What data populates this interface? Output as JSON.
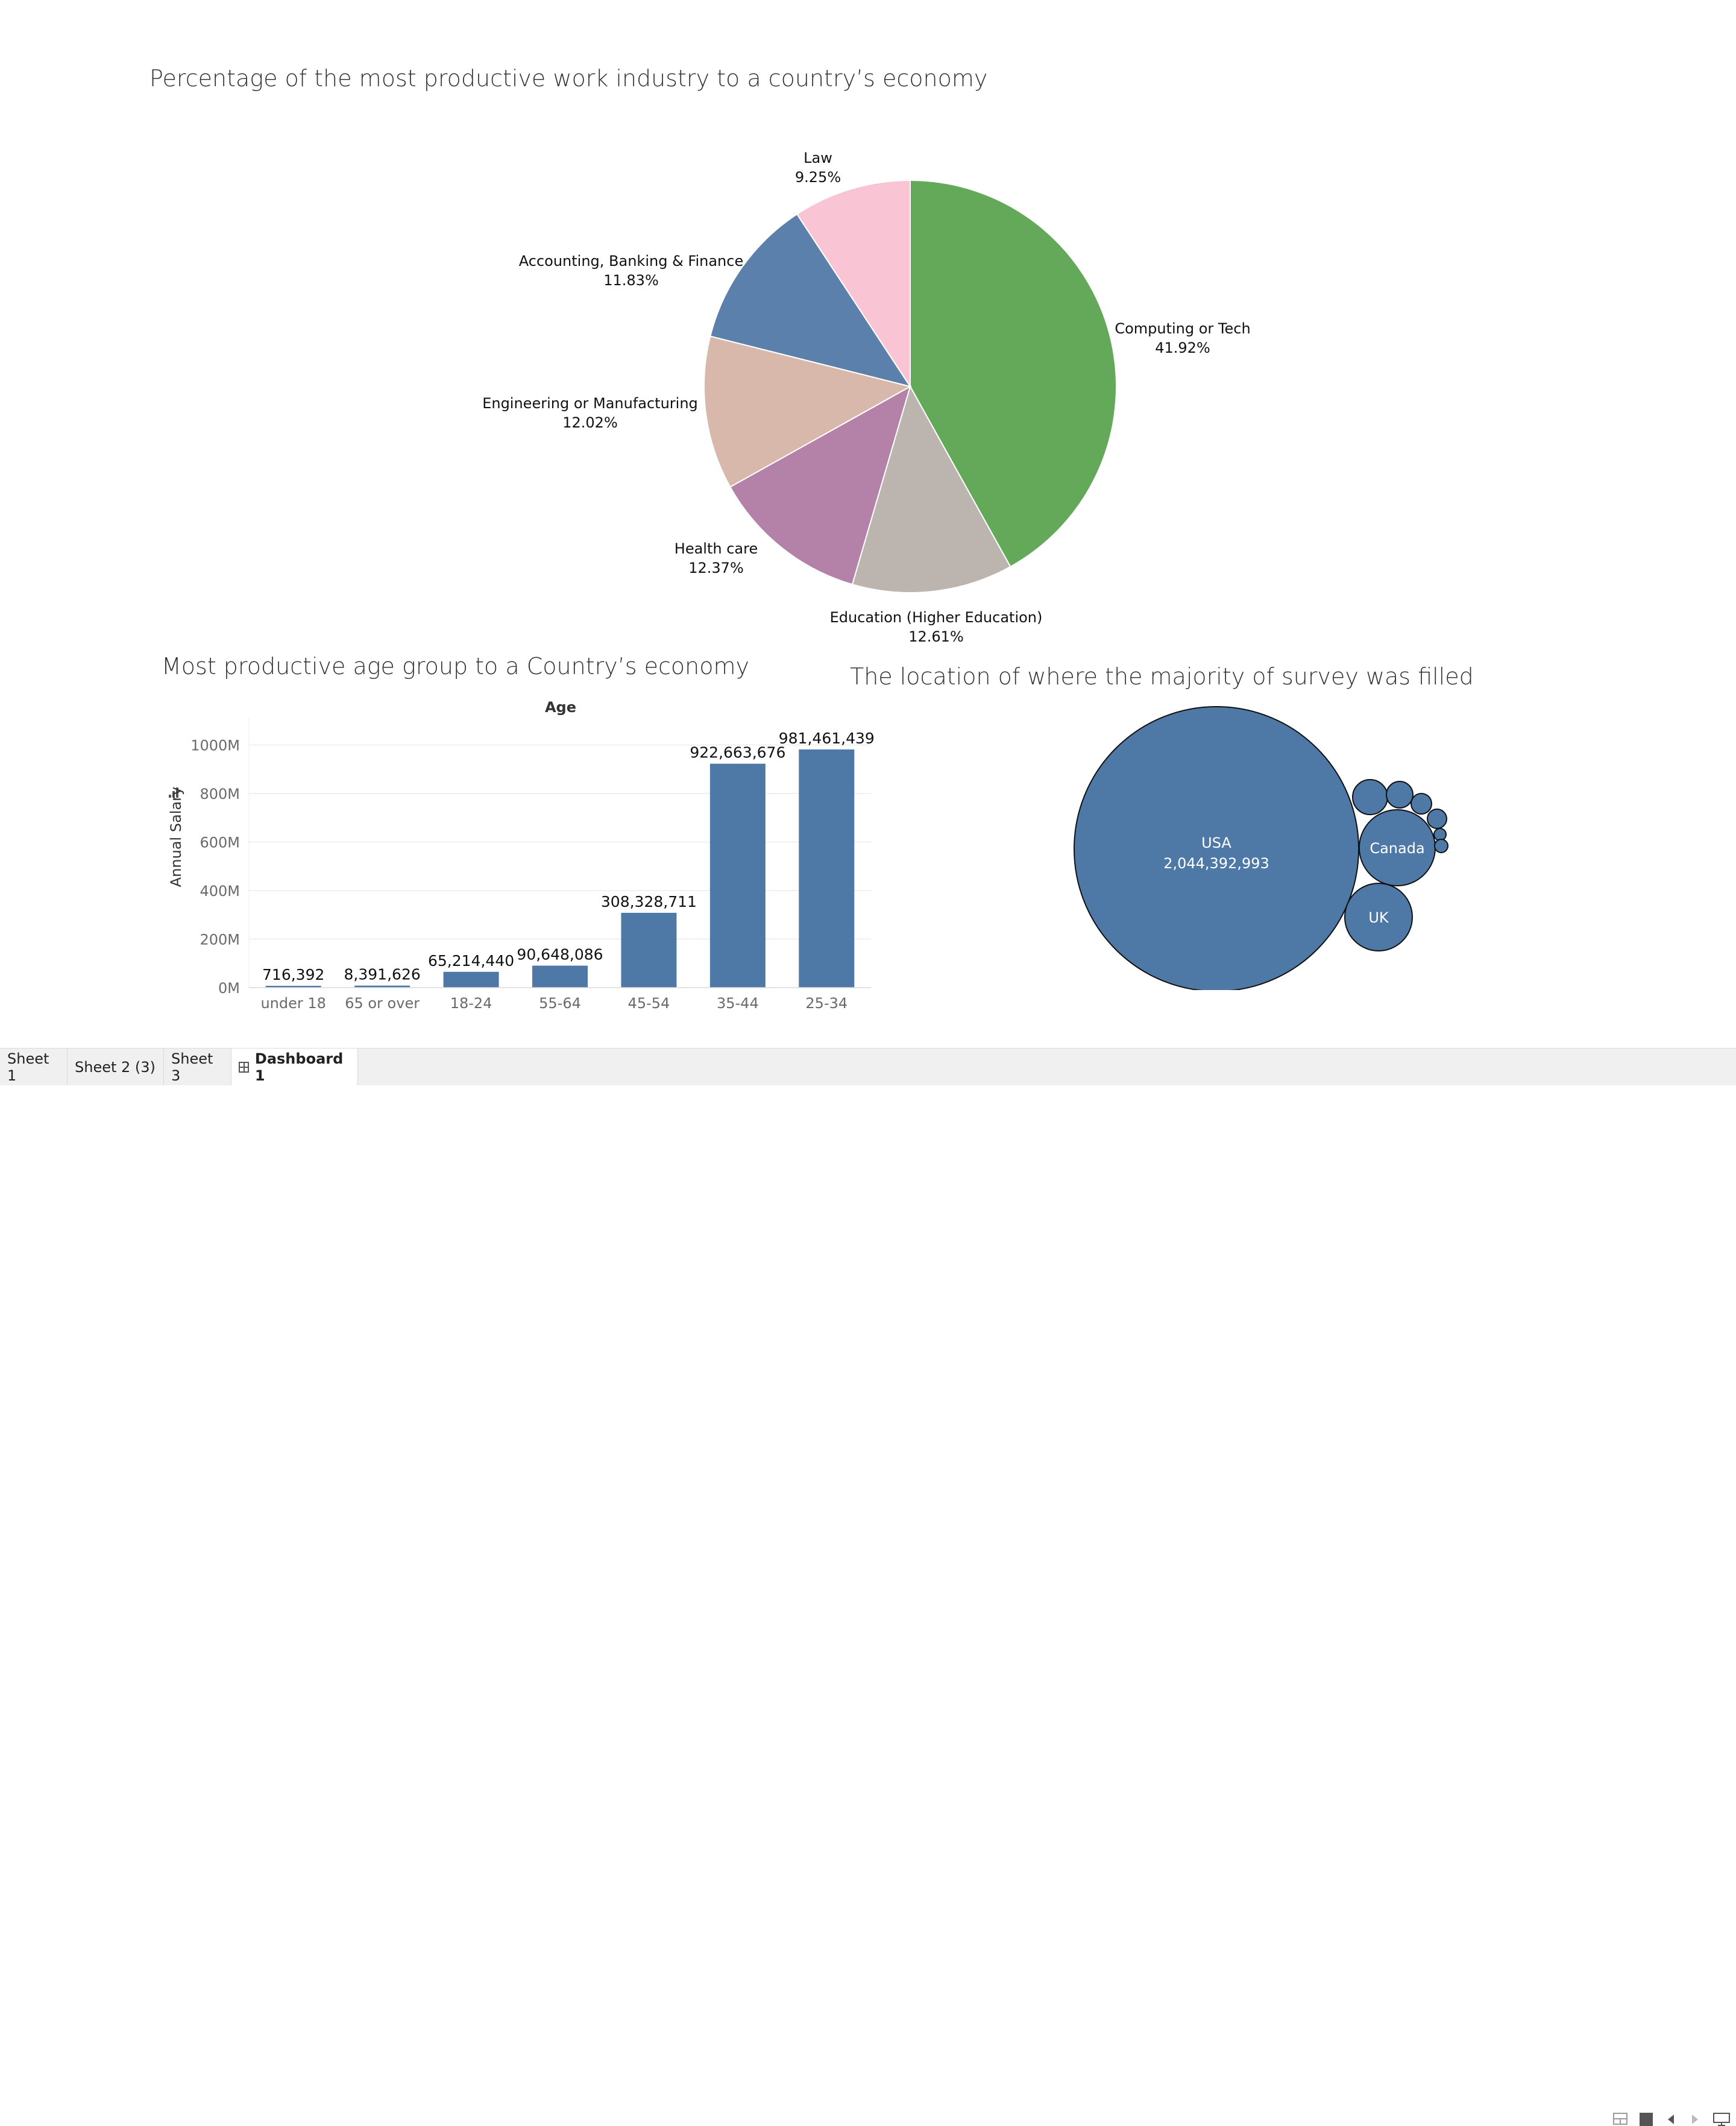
{
  "tabs": [
    {
      "label": "Sheet 1",
      "active": false
    },
    {
      "label": "Sheet 2 (3)",
      "active": false
    },
    {
      "label": "Sheet 3",
      "active": false
    },
    {
      "label": "Dashboard 1",
      "active": true
    }
  ],
  "status_icons": [
    "grid-view-icon",
    "fullscreen-icon",
    "previous-icon",
    "next-icon",
    "presentation-icon"
  ],
  "chart_data": [
    {
      "type": "pie",
      "title": "Percentage of the most productive work industry to a country’s economy",
      "slices": [
        {
          "label": "Computing or Tech",
          "value_label": "41.92%",
          "value": 41.92,
          "color": "#64a85a"
        },
        {
          "label": "Education (Higher Education)",
          "value_label": "12.61%",
          "value": 12.61,
          "color": "#bcb4af"
        },
        {
          "label": "Health care",
          "value_label": "12.37%",
          "value": 12.37,
          "color": "#b481a8"
        },
        {
          "label": "Engineering or Manufacturing",
          "value_label": "12.02%",
          "value": 12.02,
          "color": "#d8b8aa"
        },
        {
          "label": "Accounting, Banking & Finance",
          "value_label": "11.83%",
          "value": 11.83,
          "color": "#5b80ab"
        },
        {
          "label": "Law",
          "value_label": "9.25%",
          "value": 9.25,
          "color": "#f9c4d4"
        }
      ]
    },
    {
      "type": "bar",
      "title": "Most productive age group to a Country’s economy",
      "xlabel": "Age",
      "ylabel": "Annual Salary",
      "categories": [
        "under 18",
        "65 or over",
        "18-24",
        "55-64",
        "45-54",
        "35-44",
        "25-34"
      ],
      "values": [
        716392,
        8391626,
        65214440,
        90648086,
        308328711,
        922663676,
        981461439
      ],
      "value_labels": [
        "716,392",
        "8,391,626",
        "65,214,440",
        "90,648,086",
        "308,328,711",
        "922,663,676",
        "981,461,439"
      ],
      "yticks": [
        {
          "value": 0,
          "label": "0M"
        },
        {
          "value": 200000000,
          "label": "200M"
        },
        {
          "value": 400000000,
          "label": "400M"
        },
        {
          "value": 600000000,
          "label": "600M"
        },
        {
          "value": 800000000,
          "label": "800M"
        },
        {
          "value": 1000000000,
          "label": "1000M"
        }
      ],
      "ylim": [
        0,
        1000000000
      ],
      "grid": true,
      "bar_color": "#4e79a7"
    },
    {
      "type": "bubble",
      "title": "The location of  where the majority of survey was filled",
      "color": "#4e79a7",
      "bubbles": [
        {
          "label": "USA",
          "value_label": "2,044,392,993"
        },
        {
          "label": "Canada",
          "value_label": ""
        },
        {
          "label": "UK",
          "value_label": ""
        },
        {
          "label": "",
          "value_label": ""
        },
        {
          "label": "",
          "value_label": ""
        },
        {
          "label": "",
          "value_label": ""
        },
        {
          "label": "",
          "value_label": ""
        },
        {
          "label": "",
          "value_label": ""
        },
        {
          "label": "",
          "value_label": ""
        }
      ]
    }
  ]
}
